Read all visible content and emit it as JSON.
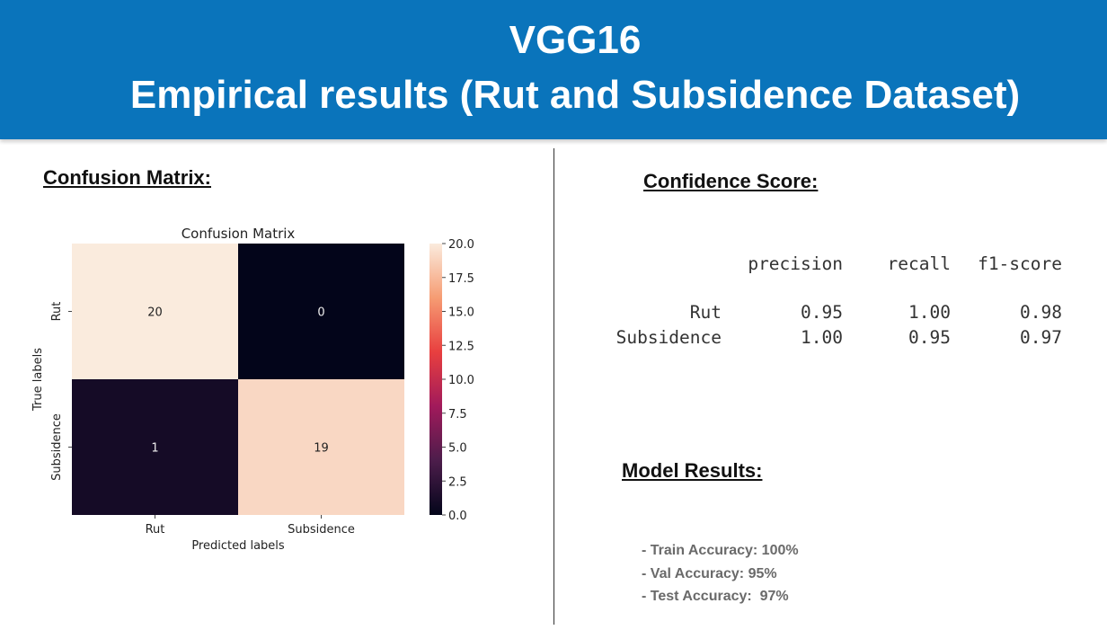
{
  "header": {
    "title": "VGG16",
    "subtitle": "Empirical results (Rut and Subsidence Dataset)"
  },
  "sections": {
    "confusion_heading": "Confusion Matrix:",
    "confidence_heading": "Confidence Score:",
    "model_heading": "Model Results:"
  },
  "chart_data": {
    "type": "heatmap",
    "title": "Confusion Matrix",
    "xlabel": "Predicted labels",
    "ylabel": "True labels",
    "x_categories": [
      "Rut",
      "Subsidence"
    ],
    "y_categories": [
      "Rut",
      "Subsidence"
    ],
    "values": [
      [
        20,
        0
      ],
      [
        1,
        19
      ]
    ],
    "colorbar": {
      "min": 0,
      "max": 20,
      "ticks": [
        "0.0",
        "2.5",
        "5.0",
        "7.5",
        "10.0",
        "12.5",
        "15.0",
        "17.5",
        "20.0"
      ]
    },
    "colormap": [
      "#03051a",
      "#4c1d4b",
      "#a11a5b",
      "#e83f3f",
      "#f69c73",
      "#faebdd"
    ]
  },
  "report": {
    "headers": [
      "precision",
      "recall",
      "f1-score"
    ],
    "rows": [
      {
        "label": "Rut",
        "precision": "0.95",
        "recall": "1.00",
        "f1": "0.98"
      },
      {
        "label": "Subsidence",
        "precision": "1.00",
        "recall": "0.95",
        "f1": "0.97"
      }
    ]
  },
  "model_results": [
    "- Train Accuracy: 100%",
    "- Val Accuracy: 95%",
    "- Test Accuracy:  97%"
  ],
  "colors": {
    "banner": "#0a74bb",
    "banner_text": "#ffffff"
  }
}
